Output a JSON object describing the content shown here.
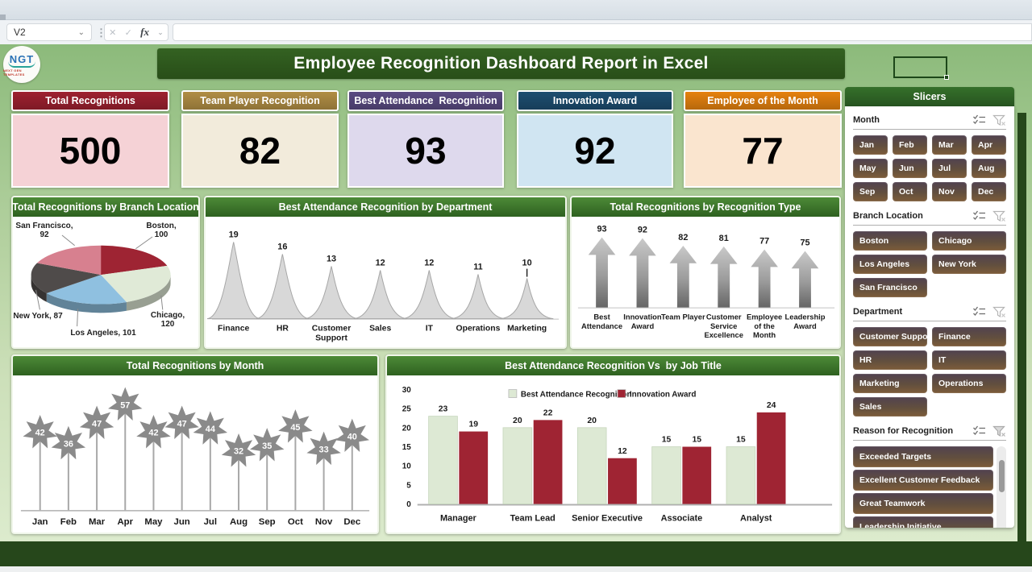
{
  "excel": {
    "name_box": "V2",
    "fx_label": "fx",
    "icons": {
      "cancel": "✕",
      "confirm": "✓",
      "chevron_down": "⌄",
      "more_dots": "⋮"
    }
  },
  "header": {
    "title": "Employee Recognition Dashboard Report in Excel",
    "logo_text": "NGT",
    "logo_subtext": "NEXT GEN TEMPLATES"
  },
  "kpis": [
    {
      "label": "Total Recognitions",
      "value": "500",
      "header_color": "#9e2130",
      "body_color": "#f5d2d6"
    },
    {
      "label": "Team Player Recognition",
      "value": "82",
      "header_color": "#b18e45",
      "body_color": "#f2ebdb"
    },
    {
      "label": "Best Attendance  Recognition",
      "value": "93",
      "header_color": "#5a4b82",
      "body_color": "#ded9ed"
    },
    {
      "label": "Innovation Award",
      "value": "92",
      "header_color": "#1d4e70",
      "body_color": "#d0e5f2"
    },
    {
      "label": "Employee of the Month",
      "value": "77",
      "header_color": "#e5820f",
      "body_color": "#fae5cf"
    }
  ],
  "chart_data": [
    {
      "type": "pie",
      "title": "Total Recognitions by Branch Location",
      "labels": [
        "Boston",
        "Chicago",
        "Los Angeles",
        "New York",
        "San Francisco"
      ],
      "values": [
        100,
        120,
        101,
        87,
        92
      ],
      "colors": [
        "#9e2433",
        "#e0ead7",
        "#8fc0e0",
        "#4f4b4a",
        "#d7808f"
      ],
      "style_3d": true,
      "legend": "none",
      "data_labels": "category-and-value"
    },
    {
      "type": "area",
      "title": "Best Attendance Recognition by Department",
      "categories": [
        "Finance",
        "HR",
        "Customer\nSupport",
        "Sales",
        "IT",
        "Operations",
        "Marketing"
      ],
      "values": [
        19,
        16,
        13,
        12,
        12,
        11,
        10
      ],
      "color": "#d8d8d8",
      "shape": "peak",
      "ylim": [
        0,
        19
      ]
    },
    {
      "type": "bar",
      "title": "Total Recognitions by Recognition Type",
      "categories": [
        "Best\nAttendance",
        "Innovation\nAward",
        "Team Player",
        "Customer\nService\nExcellence",
        "Employee\nof the\nMonth",
        "Leadership\nAward"
      ],
      "values": [
        93,
        92,
        82,
        81,
        77,
        75
      ],
      "shape": "arrow",
      "color": "#8a8a8a",
      "ylim": [
        0,
        93
      ]
    },
    {
      "type": "bar",
      "title": "Total Recognitions by Month",
      "categories": [
        "Jan",
        "Feb",
        "Mar",
        "Apr",
        "May",
        "Jun",
        "Jul",
        "Aug",
        "Sep",
        "Oct",
        "Nov",
        "Dec"
      ],
      "values": [
        42,
        36,
        47,
        57,
        42,
        47,
        44,
        32,
        35,
        45,
        33,
        40
      ],
      "shape": "star",
      "color": "#8a8a8a",
      "ylim": [
        0,
        57
      ]
    },
    {
      "type": "bar",
      "title": "Best Attendance Recognition Vs  by Job Title",
      "categories": [
        "Manager",
        "Team Lead",
        "Senior Executive",
        "Associate",
        "Analyst"
      ],
      "series": [
        {
          "name": "Best Attendance  Recognition",
          "color": "#dde9d4",
          "values": [
            23,
            20,
            20,
            15,
            15
          ]
        },
        {
          "name": "Innovation Award",
          "color": "#9f2433",
          "values": [
            19,
            22,
            12,
            15,
            24
          ]
        }
      ],
      "ylim": [
        0,
        30
      ],
      "yticks": [
        0,
        5,
        10,
        15,
        20,
        25,
        30
      ],
      "legend_position": "top"
    }
  ],
  "slicers": {
    "panel_title": "Slicers",
    "groups": [
      {
        "label": "Month",
        "columns": 4,
        "items": [
          "Jan",
          "Feb",
          "Mar",
          "Apr",
          "May",
          "Jun",
          "Jul",
          "Aug",
          "Sep",
          "Oct",
          "Nov",
          "Dec"
        ]
      },
      {
        "label": "Branch Location",
        "columns": 2,
        "items": [
          "Boston",
          "Chicago",
          "Los Angeles",
          "New York",
          "San Francisco"
        ]
      },
      {
        "label": "Department",
        "columns": 2,
        "items": [
          "Customer Support",
          "Finance",
          "HR",
          "IT",
          "Marketing",
          "Operations",
          "Sales"
        ]
      },
      {
        "label": "Reason for Recognition",
        "columns": 1,
        "items": [
          "Exceeded Targets",
          "Excellent Customer Feedback",
          "Great Teamwork",
          "Leadership Initiative"
        ],
        "scrollbar": true
      }
    ]
  },
  "ui_colors": {
    "banner_green": "#2c5420",
    "panel_header_green": "#3f7a2e",
    "background_green": "#9cc48a",
    "footer_green": "#26471b",
    "slicer_button_top": "#514250",
    "slicer_button_bottom": "#7d5c3a"
  }
}
